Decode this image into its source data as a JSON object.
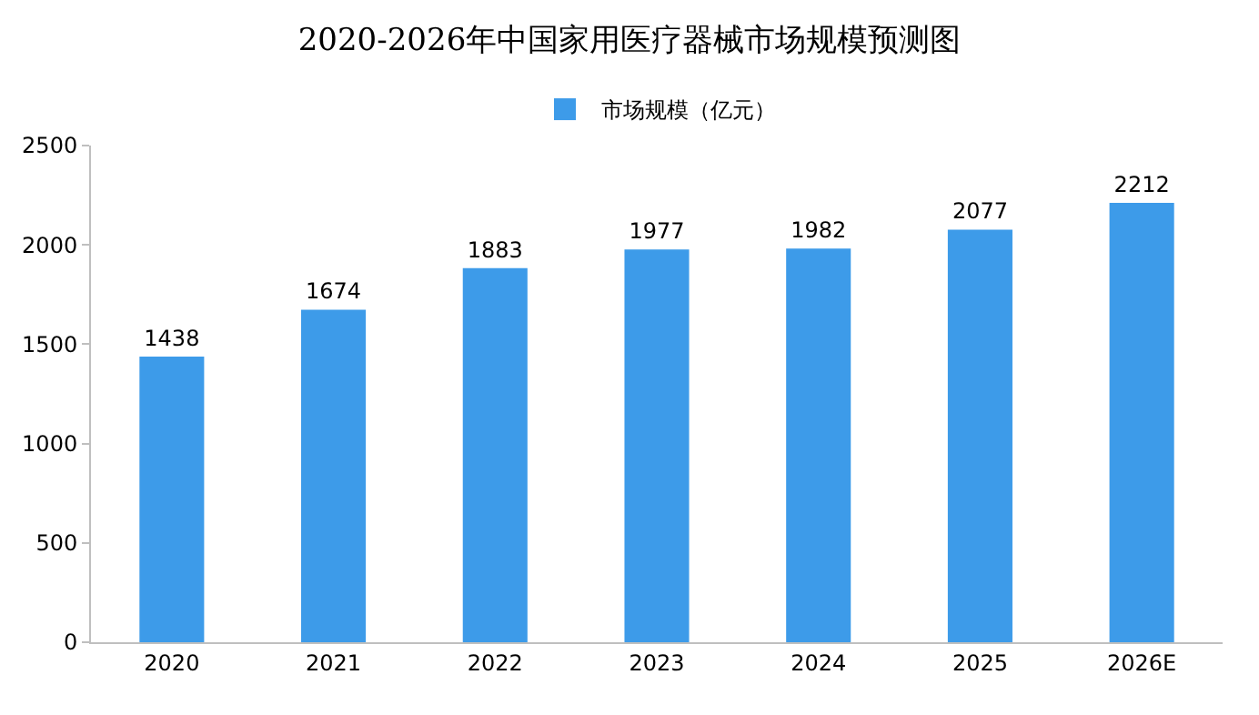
{
  "chart_data": {
    "type": "bar",
    "title": "2020-2026年中国家用医疗器械市场规模预测图",
    "categories": [
      "2020",
      "2021",
      "2022",
      "2023",
      "2024",
      "2025",
      "2026E"
    ],
    "series": [
      {
        "name": "市场规模（亿元）",
        "color": "#3d9be9",
        "values": [
          1438,
          1674,
          1883,
          1977,
          1982,
          2077,
          2212
        ]
      }
    ],
    "ylim": [
      0,
      2500
    ],
    "yticks": [
      0,
      500,
      1000,
      1500,
      2000,
      2500
    ],
    "grid": false,
    "legend": "top",
    "data_labels": true
  }
}
